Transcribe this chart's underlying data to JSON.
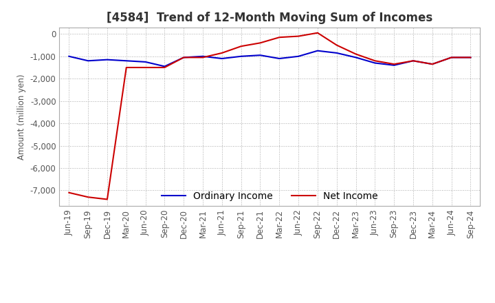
{
  "title": "[4584]  Trend of 12-Month Moving Sum of Incomes",
  "ylabel": "Amount (million yen)",
  "ylim": [
    -7700,
    300
  ],
  "yticks": [
    0,
    -1000,
    -2000,
    -3000,
    -4000,
    -5000,
    -6000,
    -7000
  ],
  "x_labels": [
    "Jun-19",
    "Sep-19",
    "Dec-19",
    "Mar-20",
    "Jun-20",
    "Sep-20",
    "Dec-20",
    "Mar-21",
    "Jun-21",
    "Sep-21",
    "Dec-21",
    "Mar-22",
    "Jun-22",
    "Sep-22",
    "Dec-22",
    "Mar-23",
    "Jun-23",
    "Sep-23",
    "Dec-23",
    "Mar-24",
    "Jun-24",
    "Sep-24"
  ],
  "ordinary_income": [
    -1000,
    -1200,
    -1150,
    -1200,
    -1250,
    -1450,
    -1050,
    -1000,
    -1100,
    -1000,
    -950,
    -1100,
    -1000,
    -750,
    -850,
    -1050,
    -1300,
    -1400,
    -1200,
    -1350,
    -1050,
    -1050
  ],
  "net_income": [
    -7100,
    -7300,
    -7400,
    -1500,
    -1500,
    -1500,
    -1050,
    -1050,
    -850,
    -550,
    -400,
    -150,
    -100,
    50,
    -500,
    -900,
    -1200,
    -1350,
    -1200,
    -1350,
    -1050,
    -1050
  ],
  "ordinary_color": "#0000cc",
  "net_color": "#cc0000",
  "background_color": "#ffffff",
  "grid_color": "#aaaaaa",
  "title_fontsize": 12,
  "legend_fontsize": 10,
  "tick_fontsize": 8.5
}
